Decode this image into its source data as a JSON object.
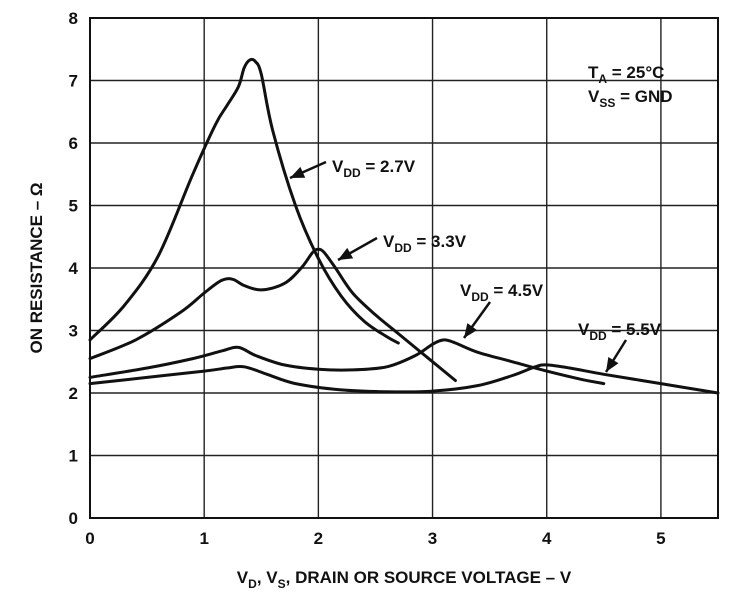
{
  "chart_data": {
    "type": "line",
    "title": "",
    "xlabel": {
      "parts": [
        "V",
        "D",
        ", V",
        "S",
        ", DRAIN OR SOURCE VOLTAGE – V"
      ]
    },
    "ylabel": "ON RESISTANCE – Ω",
    "xlim": [
      0,
      5.5
    ],
    "ylim": [
      0,
      8
    ],
    "xticks": [
      0,
      1,
      2,
      3,
      4,
      5
    ],
    "yticks": [
      0,
      1,
      2,
      3,
      4,
      5,
      6,
      7,
      8
    ],
    "xtick_labels": [
      "0",
      "1",
      "2",
      "3",
      "4",
      "5"
    ],
    "ytick_labels": [
      "0",
      "1",
      "2",
      "3",
      "4",
      "5",
      "6",
      "7",
      "8"
    ],
    "grid": true,
    "conditions": [
      {
        "main": "T",
        "sub": "A",
        "rest": " = 25°C"
      },
      {
        "main": "V",
        "sub": "SS",
        "rest": " = GND"
      }
    ],
    "series": [
      {
        "name": "VDD = 2.7V",
        "label_main": "V",
        "label_sub": "DD",
        "label_rest": " = 2.7V",
        "x": [
          0,
          0.3,
          0.6,
          0.9,
          1.1,
          1.2,
          1.3,
          1.35,
          1.4,
          1.45,
          1.5,
          1.6,
          1.8,
          2.0,
          2.2,
          2.4,
          2.6,
          2.7
        ],
        "y": [
          2.85,
          3.4,
          4.2,
          5.5,
          6.3,
          6.6,
          6.9,
          7.2,
          7.33,
          7.3,
          7.1,
          6.2,
          5.0,
          4.15,
          3.55,
          3.15,
          2.9,
          2.8
        ]
      },
      {
        "name": "VDD = 3.3V",
        "label_main": "V",
        "label_sub": "DD",
        "label_rest": " = 3.3V",
        "x": [
          0,
          0.4,
          0.8,
          1.0,
          1.15,
          1.25,
          1.35,
          1.5,
          1.7,
          1.85,
          1.95,
          2.0,
          2.05,
          2.15,
          2.3,
          2.5,
          2.7,
          2.9,
          3.1,
          3.2
        ],
        "y": [
          2.55,
          2.85,
          3.3,
          3.6,
          3.8,
          3.82,
          3.72,
          3.65,
          3.75,
          4.0,
          4.25,
          4.3,
          4.25,
          4.0,
          3.6,
          3.25,
          2.95,
          2.65,
          2.35,
          2.2
        ]
      },
      {
        "name": "VDD = 4.5V",
        "label_main": "V",
        "label_sub": "DD",
        "label_rest": " = 4.5V",
        "x": [
          0,
          0.5,
          0.9,
          1.15,
          1.3,
          1.45,
          1.7,
          2.0,
          2.3,
          2.6,
          2.85,
          3.0,
          3.1,
          3.2,
          3.4,
          3.7,
          4.0,
          4.3,
          4.5
        ],
        "y": [
          2.25,
          2.4,
          2.55,
          2.67,
          2.73,
          2.6,
          2.45,
          2.38,
          2.37,
          2.42,
          2.6,
          2.78,
          2.85,
          2.8,
          2.65,
          2.5,
          2.35,
          2.22,
          2.15
        ]
      },
      {
        "name": "VDD = 5.5V",
        "label_main": "V",
        "label_sub": "DD",
        "label_rest": " = 5.5V",
        "x": [
          0,
          0.5,
          1.0,
          1.2,
          1.35,
          1.55,
          1.8,
          2.2,
          2.6,
          3.0,
          3.4,
          3.7,
          3.9,
          4.0,
          4.2,
          4.5,
          5.0,
          5.5
        ],
        "y": [
          2.15,
          2.25,
          2.35,
          2.4,
          2.42,
          2.3,
          2.15,
          2.05,
          2.02,
          2.03,
          2.12,
          2.28,
          2.42,
          2.45,
          2.4,
          2.3,
          2.15,
          2.0
        ]
      }
    ]
  }
}
